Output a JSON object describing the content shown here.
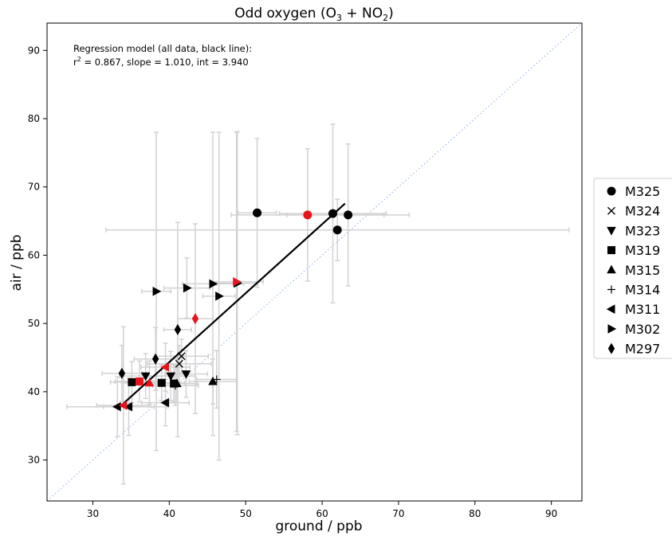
{
  "chart_data": {
    "type": "scatter",
    "title_main": "Odd oxygen (O",
    "title_o3_sub": "3",
    "title_mid": " + NO",
    "title_no2_sub": "2",
    "title_end": ")",
    "xlabel": "ground / ppb",
    "ylabel": "air / ppb",
    "xlim": [
      24,
      94
    ],
    "ylim": [
      24,
      94
    ],
    "xticks": [
      30,
      40,
      50,
      60,
      70,
      80,
      90
    ],
    "yticks": [
      30,
      40,
      50,
      60,
      70,
      80,
      90
    ],
    "grid": false,
    "legend_position": "right",
    "annotation": {
      "line1": "Regression model (all data, black line):",
      "line2_r": "r",
      "line2_sup": "2",
      "line2_rest": " = 0.867, slope = 1.010, int = 3.940"
    },
    "regression_line": {
      "slope": 1.01,
      "intercept": 3.94,
      "x_range": [
        33.5,
        63.0
      ],
      "color": "#000000"
    },
    "identity_line": {
      "color": "#aac4ee",
      "style": "dotted"
    },
    "highlight_color": "#e8141b",
    "errorbar_color": "#d2d2d2",
    "series": [
      {
        "name": "M325",
        "marker": "circle",
        "points": [
          {
            "x": 51.5,
            "y": 66.2,
            "xerr": 2.5,
            "yerr": 10.9
          },
          {
            "x": 58.1,
            "y": 65.9,
            "xerr": 10.0,
            "yerr": 9.7,
            "highlight": true
          },
          {
            "x": 61.4,
            "y": 66.1,
            "xerr": 7.0,
            "yerr": 13.1
          },
          {
            "x": 62.0,
            "y": 63.7,
            "xerr": 30.3,
            "yerr": 4.5
          },
          {
            "x": 63.4,
            "y": 65.9,
            "xerr": 8.0,
            "yerr": 10.4
          }
        ]
      },
      {
        "name": "M324",
        "marker": "x",
        "points": [
          {
            "x": 41.6,
            "y": 45.2,
            "xerr": 3.5,
            "yerr": 2.5
          },
          {
            "x": 41.3,
            "y": 44.1,
            "xerr": 4.2,
            "yerr": 2.7
          }
        ]
      },
      {
        "name": "M323",
        "marker": "triangle_down",
        "points": [
          {
            "x": 40.2,
            "y": 42.3,
            "xerr": 3.2,
            "yerr": 3.6
          },
          {
            "x": 42.2,
            "y": 42.6,
            "xerr": 2.8,
            "yerr": 3.4
          },
          {
            "x": 36.9,
            "y": 42.3,
            "xerr": 3.4,
            "yerr": 3.3
          }
        ]
      },
      {
        "name": "M319",
        "marker": "square",
        "points": [
          {
            "x": 35.1,
            "y": 41.4,
            "xerr": 2.8,
            "yerr": 3.0
          },
          {
            "x": 39.0,
            "y": 41.3,
            "xerr": 3.0,
            "yerr": 2.6
          },
          {
            "x": 40.6,
            "y": 41.2,
            "xerr": 3.1,
            "yerr": 2.7
          },
          {
            "x": 36.1,
            "y": 41.5,
            "xerr": 3.2,
            "yerr": 3.0,
            "highlight": true
          }
        ]
      },
      {
        "name": "M315",
        "marker": "triangle_up",
        "points": [
          {
            "x": 45.7,
            "y": 41.5,
            "xerr": 3.1,
            "yerr": 3.3
          },
          {
            "x": 41.0,
            "y": 41.2,
            "xerr": 2.5,
            "yerr": 2.8
          },
          {
            "x": 37.4,
            "y": 41.3,
            "xerr": 3.6,
            "yerr": 3.2,
            "highlight": true
          }
        ]
      },
      {
        "name": "M314",
        "marker": "plus",
        "points": [
          {
            "x": 46.2,
            "y": 41.8,
            "xerr": 2.6,
            "yerr": 4.2
          },
          {
            "x": 40.8,
            "y": 40.9,
            "xerr": 3.0,
            "yerr": 2.9
          }
        ]
      },
      {
        "name": "M311",
        "marker": "triangle_left",
        "points": [
          {
            "x": 33.2,
            "y": 37.8,
            "xerr": 6.6,
            "yerr": 4.4
          },
          {
            "x": 34.7,
            "y": 37.8,
            "xerr": 3.3,
            "yerr": 4.2
          },
          {
            "x": 39.5,
            "y": 38.4,
            "xerr": 3.1,
            "yerr": 3.4
          },
          {
            "x": 34.0,
            "y": 38.0,
            "xerr": 3.5,
            "yerr": 11.5,
            "highlight": true
          },
          {
            "x": 39.5,
            "y": 43.6,
            "xerr": 3.2,
            "yerr": 3.5,
            "highlight": true
          }
        ]
      },
      {
        "name": "M302",
        "marker": "triangle_right",
        "points": [
          {
            "x": 38.3,
            "y": 54.7,
            "xerr": 1.9,
            "yerr": 23.3
          },
          {
            "x": 42.3,
            "y": 55.2,
            "xerr": 3.0,
            "yerr": 4.4
          },
          {
            "x": 45.7,
            "y": 55.8,
            "xerr": 4.0,
            "yerr": 22.2
          },
          {
            "x": 46.5,
            "y": 54.0,
            "xerr": 2.1,
            "yerr": 24.0
          },
          {
            "x": 48.9,
            "y": 55.9,
            "xerr": 2.7,
            "yerr": 22.2
          },
          {
            "x": 48.8,
            "y": 56.1,
            "xerr": 3.5,
            "yerr": 21.9,
            "highlight": true
          }
        ]
      },
      {
        "name": "M297",
        "marker": "diamond",
        "points": [
          {
            "x": 33.8,
            "y": 42.7,
            "xerr": 2.6,
            "yerr": 4.1
          },
          {
            "x": 38.2,
            "y": 44.8,
            "xerr": 2.8,
            "yerr": 4.6
          },
          {
            "x": 41.1,
            "y": 49.1,
            "xerr": 1.8,
            "yerr": 15.7
          },
          {
            "x": 43.4,
            "y": 50.7,
            "xerr": 2.3,
            "yerr": 13.9,
            "highlight": true
          }
        ]
      }
    ]
  }
}
